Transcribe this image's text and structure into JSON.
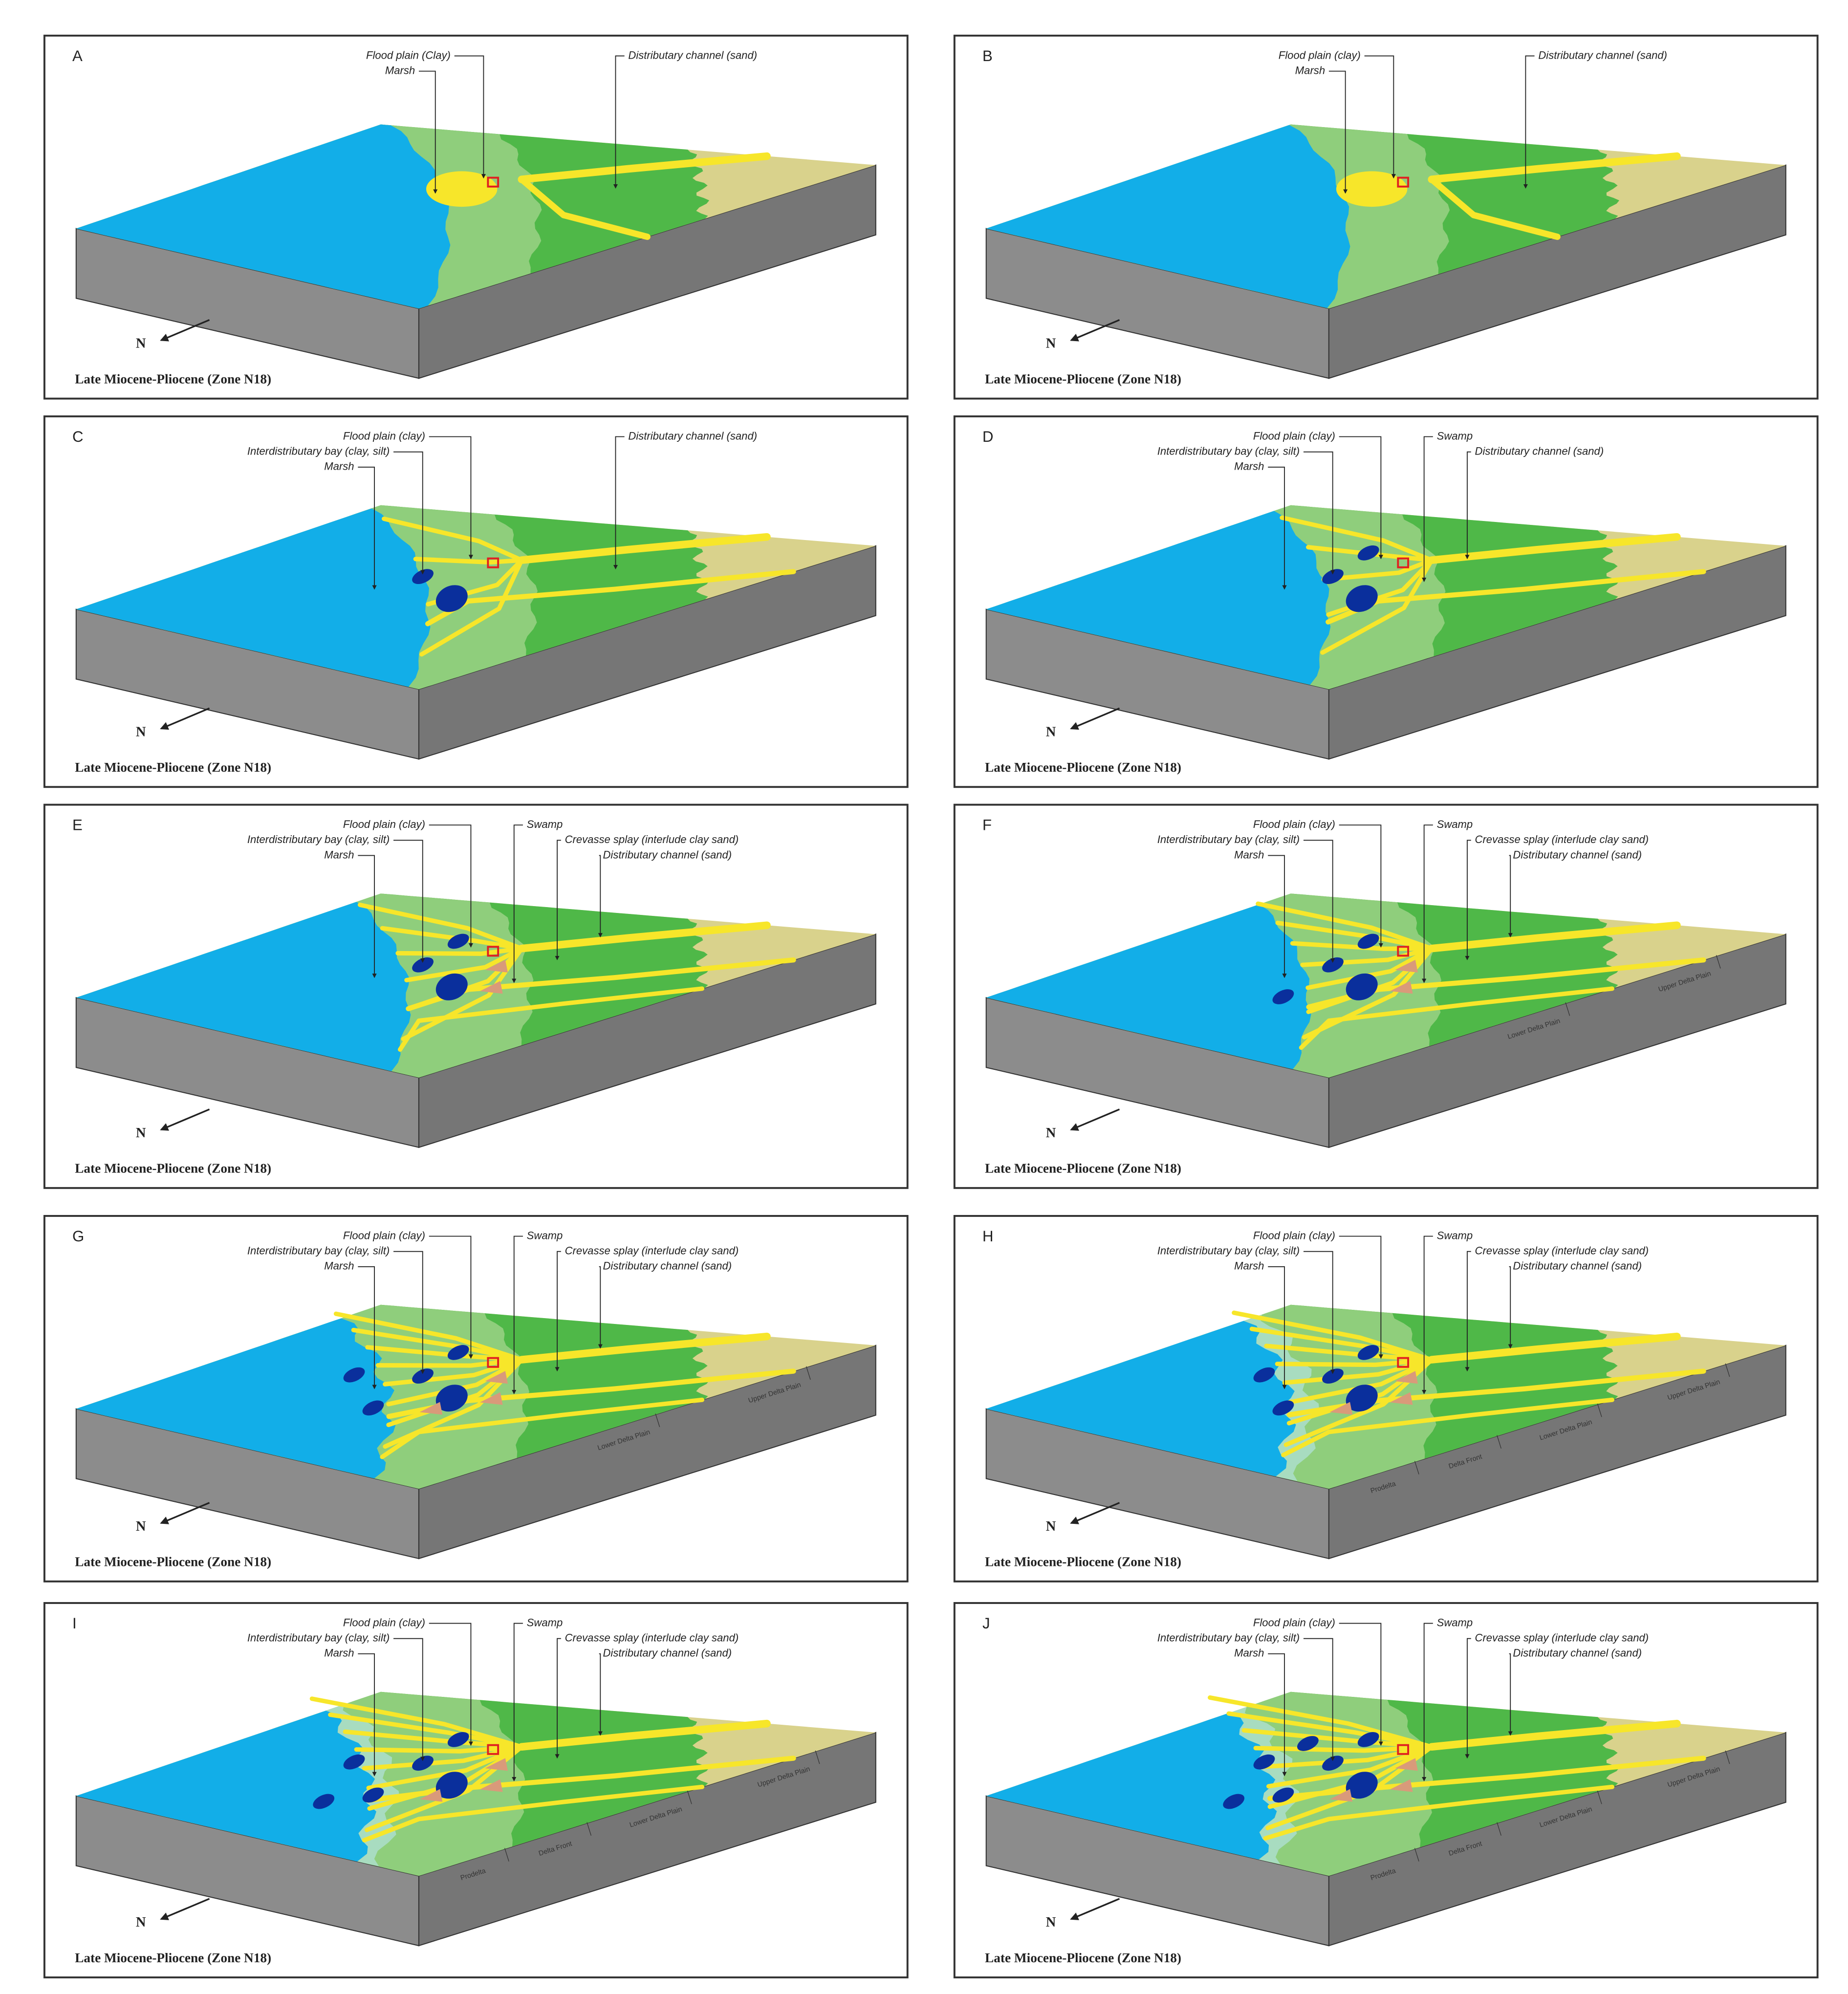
{
  "panels": [
    {
      "letter": "A",
      "labels": [
        "Flood plain (Clay)",
        "Marsh",
        "Distributary channel (sand)"
      ],
      "north": "N",
      "caption": "Late Miocene-Pliocene (Zone N18)"
    },
    {
      "letter": "B",
      "labels": [
        "Flood plain (clay)",
        "Marsh",
        "Distributary channel (sand)"
      ],
      "north": "N",
      "caption": "Late Miocene-Pliocene (Zone N18)"
    },
    {
      "letter": "C",
      "labels": [
        "Flood plain (clay)",
        "Interdistributary bay (clay, silt)",
        "Marsh",
        "Distributary channel (sand)"
      ],
      "north": "N",
      "caption": "Late Miocene-Pliocene (Zone N18)"
    },
    {
      "letter": "D",
      "labels": [
        "Flood plain (clay)",
        "Interdistributary bay (clay, silt)",
        "Marsh",
        "Swamp",
        "Distributary channel (sand)"
      ],
      "north": "N",
      "caption": "Late Miocene-Pliocene (Zone N18)"
    },
    {
      "letter": "E",
      "labels": [
        "Flood plain (clay)",
        "Interdistributary bay (clay, silt)",
        "Marsh",
        "Swamp",
        "Crevasse splay (interlude clay sand)",
        "Distributary channel (sand)"
      ],
      "north": "N",
      "caption": "Late Miocene-Pliocene (Zone N18)"
    },
    {
      "letter": "F",
      "labels": [
        "Flood plain (clay)",
        "Interdistributary bay (clay, silt)",
        "Marsh",
        "Swamp",
        "Crevasse splay (interlude clay sand)",
        "Distributary channel (sand)"
      ],
      "zone_labels": [
        "Lower Delta Plain",
        "Upper Delta Plain"
      ],
      "north": "N",
      "caption": "Late Miocene-Pliocene (Zone N18)"
    },
    {
      "letter": "G",
      "labels": [
        "Flood plain (clay)",
        "Interdistributary bay (clay, silt)",
        "Marsh",
        "Swamp",
        "Crevasse splay (interlude clay sand)",
        "Distributary channel (sand)"
      ],
      "zone_labels": [
        "Lower Delta Plain",
        "Upper Delta Plain"
      ],
      "north": "N",
      "caption": "Late Miocene-Pliocene (Zone N18)"
    },
    {
      "letter": "H",
      "labels": [
        "Flood plain (clay)",
        "Interdistributary bay (clay, silt)",
        "Marsh",
        "Swamp",
        "Crevasse splay (interlude clay sand)",
        "Distributary channel (sand)"
      ],
      "zone_labels": [
        "Prodelta",
        "Delta Front",
        "Lower Delta Plain",
        "Upper Delta Plain"
      ],
      "north": "N",
      "caption": "Late Miocene-Pliocene (Zone N18)"
    },
    {
      "letter": "I",
      "labels": [
        "Flood plain (clay)",
        "Interdistributary bay (clay, silt)",
        "Marsh",
        "Swamp",
        "Crevasse splay (interlude clay sand)",
        "Distributary channel (sand)"
      ],
      "zone_labels": [
        "Prodelta",
        "Delta Front",
        "Lower Delta Plain",
        "Upper Delta Plain"
      ],
      "north": "N",
      "caption": "Late Miocene-Pliocene (Zone N18)"
    },
    {
      "letter": "J",
      "labels": [
        "Flood plain (clay)",
        "Interdistributary bay (clay, silt)",
        "Marsh",
        "Swamp",
        "Crevasse splay (interlude clay sand)",
        "Distributary channel (sand)"
      ],
      "zone_labels": [
        "Prodelta",
        "Delta Front",
        "Lower Delta Plain",
        "Upper Delta Plain"
      ],
      "north": "N",
      "caption": "Late Miocene-Pliocene (Zone N18)"
    }
  ]
}
